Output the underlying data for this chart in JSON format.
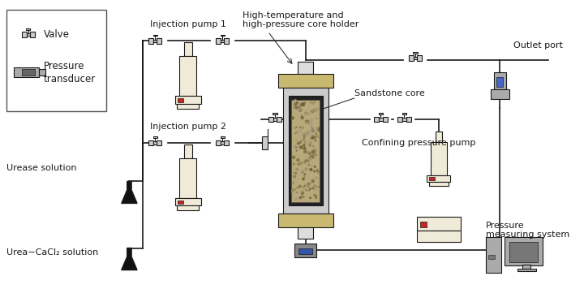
{
  "bg_color": "#ffffff",
  "line_color": "#1a1a1a",
  "valve_color": "#cccccc",
  "pump_color": "#f0ead8",
  "core_holder_color": "#c8b870",
  "sandstone_color": "#b8a87a",
  "flask_color": "#111111",
  "labels": {
    "valve": "Valve",
    "pressure_transducer": "Pressure\ntransducer",
    "injection_pump1": "Injection pump 1",
    "injection_pump2": "Injection pump 2",
    "core_holder": "High-temperature and\nhigh-pressure core holder",
    "sandstone": "Sandstone core",
    "confining": "Confining pressure pump",
    "outlet": "Outlet port",
    "urease": "Urease solution",
    "urea": "Urea−CaCl₂ solution",
    "pressure_sys": "Pressure\nmeasuring system"
  }
}
